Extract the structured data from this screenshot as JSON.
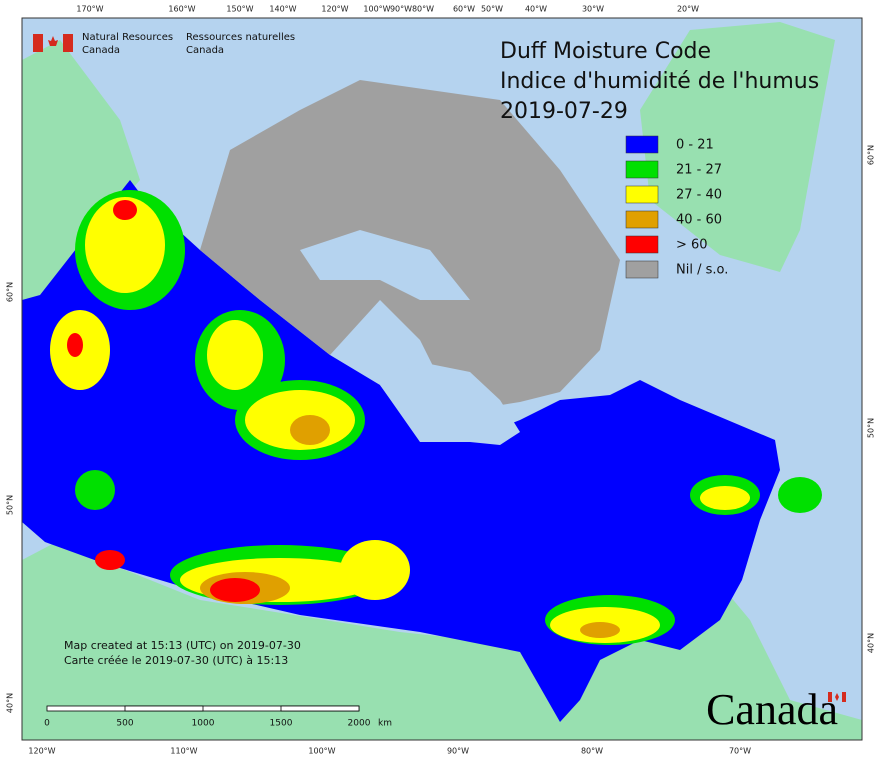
{
  "header": {
    "agency_en": [
      "Natural Resources",
      "Canada"
    ],
    "agency_fr": [
      "Ressources naturelles",
      "Canada"
    ]
  },
  "title": [
    "Duff Moisture Code",
    "Indice d'humidité de l'humus",
    "2019-07-29"
  ],
  "legend": [
    {
      "label": "0 - 21",
      "color": "#0000ff"
    },
    {
      "label": "21 - 27",
      "color": "#00e000"
    },
    {
      "label": "27 - 40",
      "color": "#ffff00"
    },
    {
      "label": "40 - 60",
      "color": "#e0a000"
    },
    {
      "label": "> 60",
      "color": "#ff0000"
    },
    {
      "label": "Nil / s.o.",
      "color": "#a0a0a0"
    }
  ],
  "notes": [
    "Map created at 15:13 (UTC) on 2019-07-30",
    "Carte créée le 2019-07-30 (UTC) à 15:13"
  ],
  "scale_bar": {
    "labels": [
      "0",
      "500",
      "1000",
      "1500",
      "2000"
    ],
    "unit": "km"
  },
  "graticule": {
    "top": [
      "170°W",
      "160°W",
      "150°W",
      "140°W",
      "120°W",
      "100°W",
      "90°W",
      "80°W",
      "60°W",
      "50°W",
      "40°W",
      "30°W",
      "20°W"
    ],
    "bottom": [
      "120°W",
      "110°W",
      "100°W",
      "90°W",
      "80°W",
      "70°W"
    ],
    "left": [
      "60°N",
      "50°N",
      "40°N"
    ],
    "right": [
      "60°N",
      "50°N",
      "40°N"
    ]
  },
  "wordmark": "Canada"
}
